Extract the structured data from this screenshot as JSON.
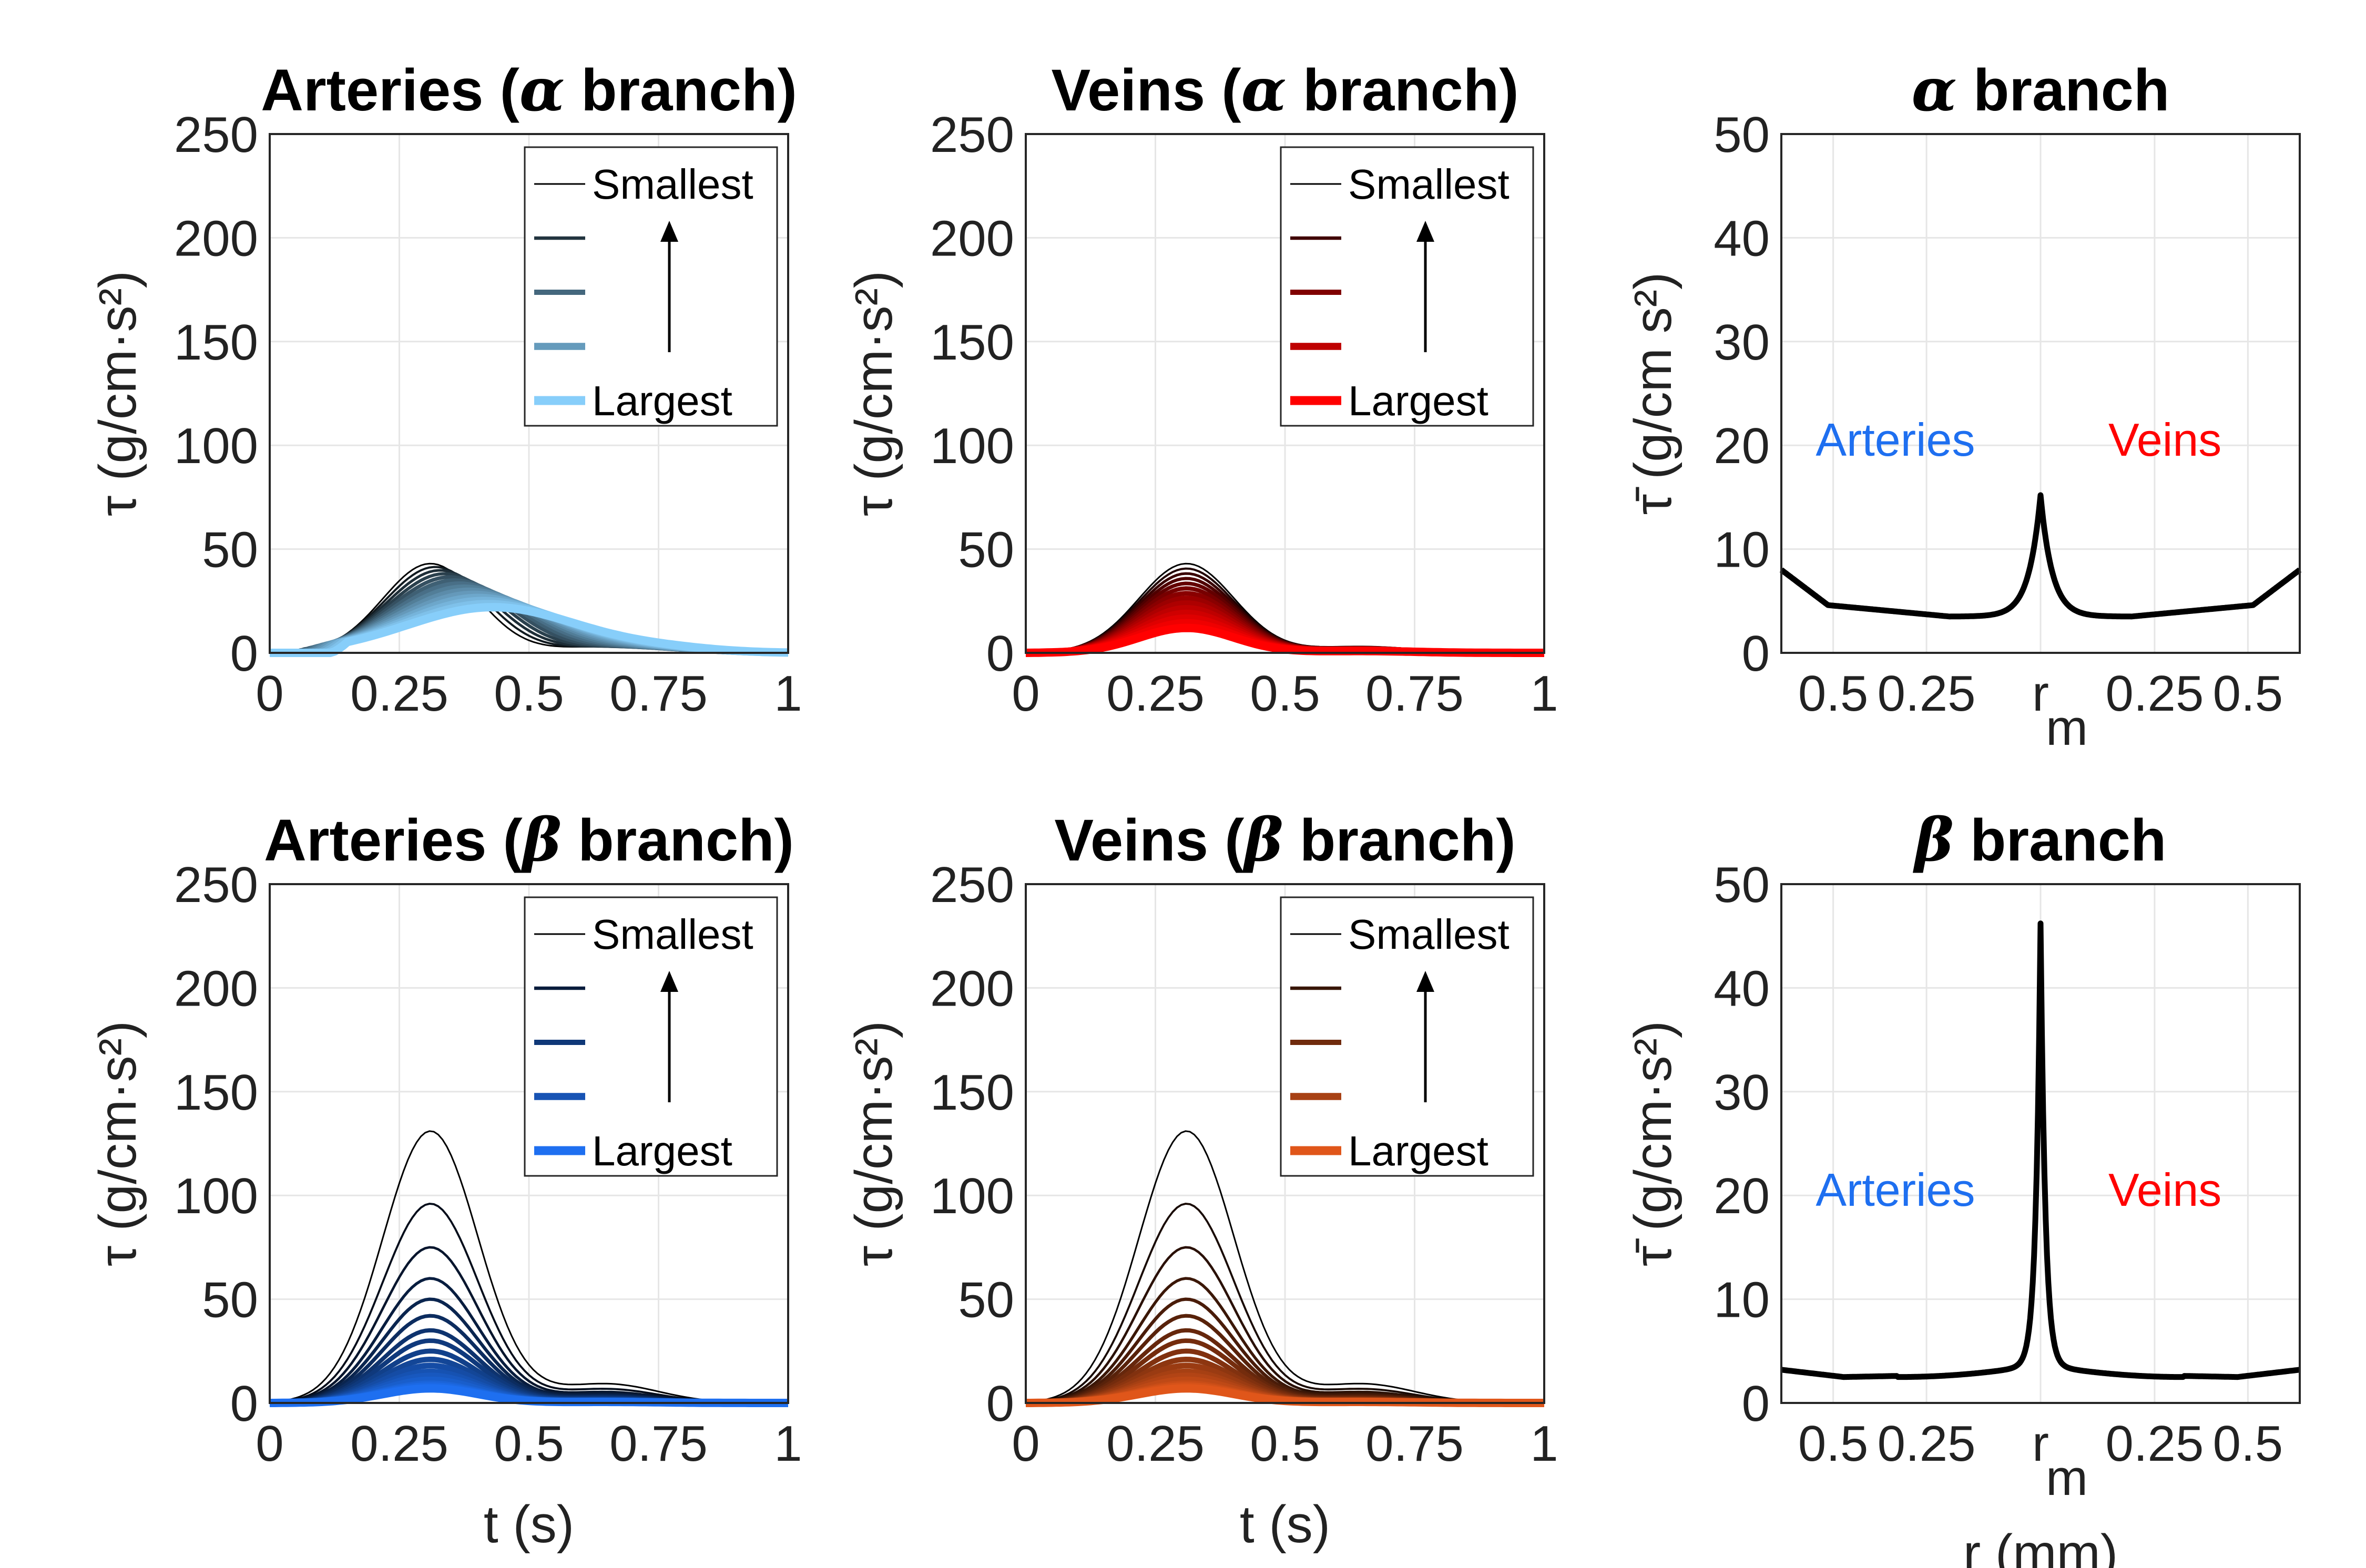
{
  "chart_data": [
    {
      "id": "art-alpha",
      "type": "line",
      "title_prefix": "Arteries (",
      "title_greek": "α",
      "title_suffix": " branch)",
      "ylabel": "τ (g/cm·s²)",
      "xlabel": "",
      "xlim": [
        0,
        1
      ],
      "ylim": [
        0,
        250
      ],
      "xticks": [
        "0",
        "0.25",
        "0.5",
        "0.75",
        "1"
      ],
      "yticks": [
        "0",
        "50",
        "100",
        "150",
        "200",
        "250"
      ],
      "legend": [
        "Smallest",
        "Largest"
      ],
      "family": "artA",
      "series_summary": {
        "n_curves": 14,
        "peak_smallest": 43,
        "peak_largest": 22,
        "t_peak": 0.31
      }
    },
    {
      "id": "vein-alpha",
      "type": "line",
      "title_prefix": "Veins (",
      "title_greek": "α",
      "title_suffix": " branch)",
      "ylabel": "τ (g/cm·s²)",
      "xlabel": "",
      "xlim": [
        0,
        1
      ],
      "ylim": [
        0,
        250
      ],
      "xticks": [
        "0",
        "0.25",
        "0.5",
        "0.75",
        "1"
      ],
      "yticks": [
        "0",
        "50",
        "100",
        "150",
        "200",
        "250"
      ],
      "legend": [
        "Smallest",
        "Largest"
      ],
      "family": "veinA",
      "series_summary": {
        "n_curves": 14,
        "peak_smallest": 43,
        "peak_largest": 12,
        "t_peak": 0.31
      }
    },
    {
      "id": "mean-alpha",
      "type": "line",
      "title_prefix": "",
      "title_greek": "α",
      "title_suffix": " branch",
      "ylabel": "τ̄ (g/cm s²)",
      "xlabel": "",
      "ylim": [
        0,
        50
      ],
      "xticks": [
        "0.5",
        "0.25",
        "r",
        "0.25",
        "0.5"
      ],
      "yticks": [
        "0",
        "10",
        "20",
        "30",
        "40",
        "50"
      ],
      "annotations": {
        "arteries": "Arteries",
        "veins": "Veins"
      },
      "profile": {
        "edge": 8,
        "mid_low": 4.5,
        "min": 3.5,
        "peak": 15.2
      }
    },
    {
      "id": "art-beta",
      "type": "line",
      "title_prefix": "Arteries (",
      "title_greek": "β",
      "title_suffix": " branch)",
      "ylabel": "τ (g/cm·s²)",
      "xlabel": "t (s)",
      "xlim": [
        0,
        1
      ],
      "ylim": [
        0,
        250
      ],
      "xticks": [
        "0",
        "0.25",
        "0.5",
        "0.75",
        "1"
      ],
      "yticks": [
        "0",
        "50",
        "100",
        "150",
        "200",
        "250"
      ],
      "legend": [
        "Smallest",
        "Largest"
      ],
      "family": "artB",
      "series_summary": {
        "n_curves": 17,
        "peaks": [
          131,
          96,
          75,
          60,
          50,
          42,
          35,
          30,
          25,
          21,
          18,
          15,
          13,
          11,
          9,
          8,
          7
        ],
        "t_peak": 0.31
      }
    },
    {
      "id": "vein-beta",
      "type": "line",
      "title_prefix": "Veins (",
      "title_greek": "β",
      "title_suffix": " branch)",
      "ylabel": "τ (g/cm·s²)",
      "xlabel": "t (s)",
      "xlim": [
        0,
        1
      ],
      "ylim": [
        0,
        250
      ],
      "xticks": [
        "0",
        "0.25",
        "0.5",
        "0.75",
        "1"
      ],
      "yticks": [
        "0",
        "50",
        "100",
        "150",
        "200",
        "250"
      ],
      "legend": [
        "Smallest",
        "Largest"
      ],
      "family": "veinB",
      "series_summary": {
        "n_curves": 17,
        "peaks": [
          131,
          96,
          75,
          60,
          50,
          42,
          35,
          30,
          25,
          21,
          18,
          15,
          13,
          11,
          9,
          8,
          7
        ],
        "t_peak": 0.31
      }
    },
    {
      "id": "mean-beta",
      "type": "line",
      "title_prefix": "",
      "title_greek": "β",
      "title_suffix": " branch",
      "ylabel": "τ̄ (g/cm·s²)",
      "xlabel": "r (mm)",
      "ylim": [
        0,
        50
      ],
      "xticks": [
        "0.5",
        "0.25",
        "r",
        "0.25",
        "0.5"
      ],
      "yticks": [
        "0",
        "10",
        "20",
        "30",
        "40",
        "50"
      ],
      "annotations": {
        "arteries": "Arteries",
        "veins": "Veins"
      },
      "profile": {
        "edge": 3.2,
        "mid_low": 2.5,
        "min": 2.5,
        "peak": 45
      }
    }
  ],
  "sub_m": "m",
  "colors": {
    "artA": "#87cefa",
    "veinA": "#ff0000",
    "artB": "#1e6ff0",
    "veinB": "#e0561a",
    "arteries_text": "#1e6ff0",
    "veins_text": "#ff0000",
    "grid": "#e6e6e6"
  }
}
